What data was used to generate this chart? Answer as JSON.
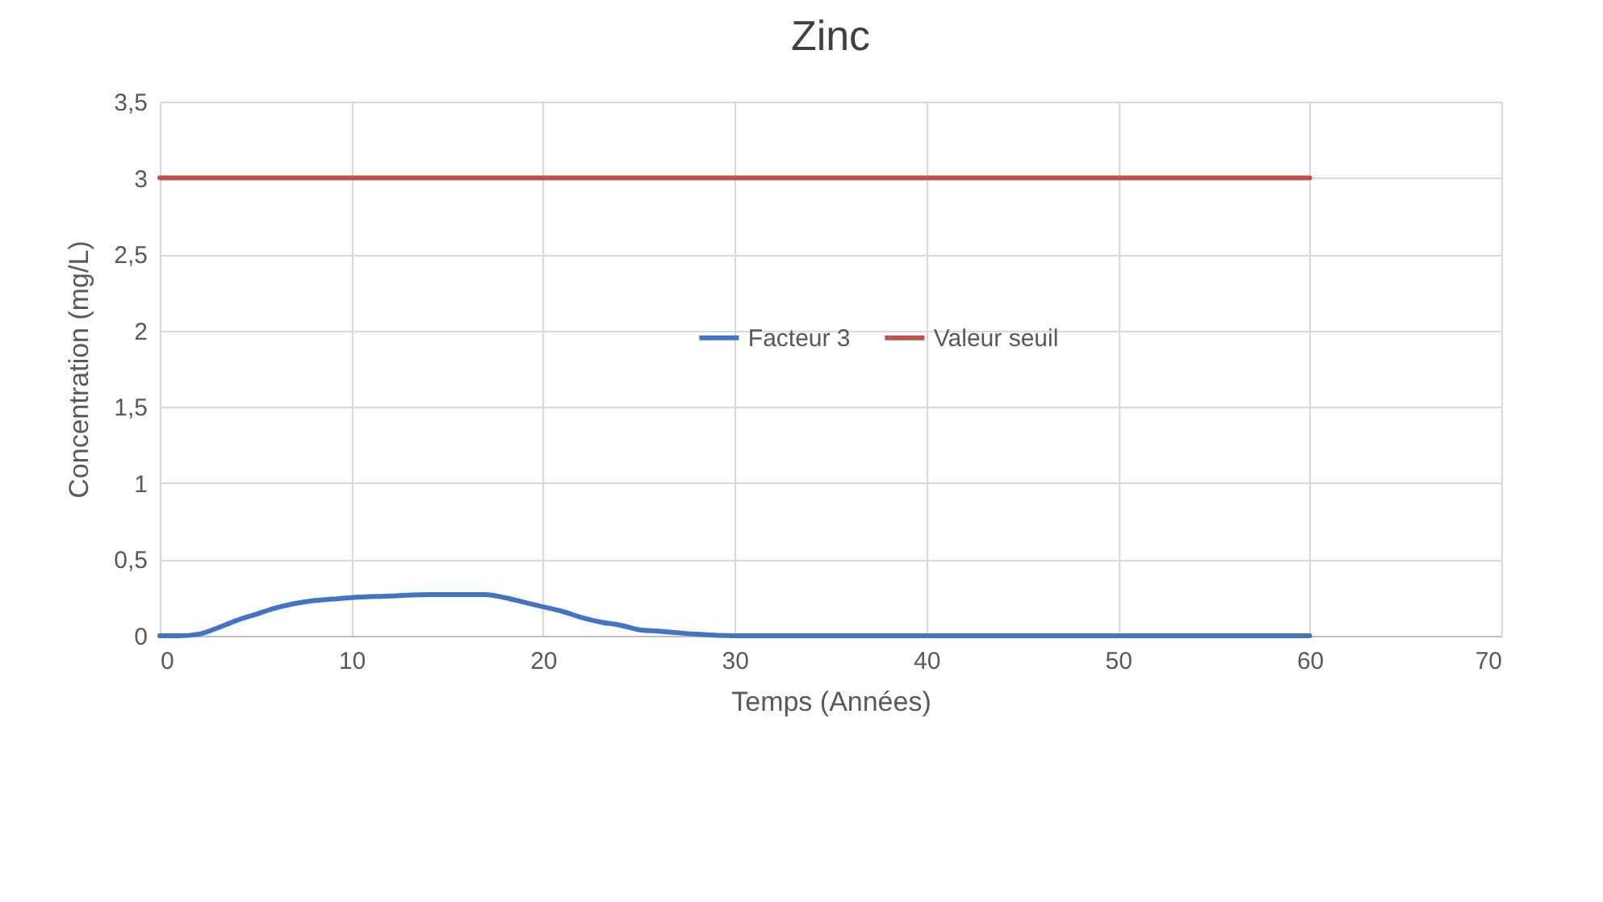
{
  "chart_data": {
    "type": "line",
    "title": "Zinc",
    "xlabel": "Temps (Années)",
    "ylabel": "Concentration (mg/L)",
    "x": [
      0,
      1,
      2,
      3,
      4,
      5,
      6,
      7,
      8,
      9,
      10,
      12,
      14,
      16,
      17,
      18,
      19,
      20,
      21,
      22,
      23,
      24,
      25,
      26,
      27,
      28,
      30,
      32,
      40,
      50,
      60
    ],
    "series": [
      {
        "name": "Facteur 3",
        "color": "#4472c4",
        "values": [
          0,
          0,
          0.01,
          0.05,
          0.1,
          0.14,
          0.18,
          0.21,
          0.23,
          0.24,
          0.25,
          0.26,
          0.27,
          0.27,
          0.27,
          0.25,
          0.22,
          0.19,
          0.16,
          0.12,
          0.09,
          0.07,
          0.04,
          0.03,
          0.02,
          0.01,
          0,
          0,
          0,
          0,
          0
        ]
      },
      {
        "name": "Valeur seuil",
        "color": "#c0504d",
        "x": [
          0,
          60
        ],
        "values": [
          3,
          3
        ]
      }
    ],
    "xlim": [
      0,
      70
    ],
    "xticks": [
      0,
      10,
      20,
      30,
      40,
      50,
      60,
      70
    ],
    "ylim": [
      0,
      3.5
    ],
    "yticks": [
      0,
      {
        "value": 0.5,
        "label": "0,5"
      },
      1,
      {
        "value": 1.5,
        "label": "1,5"
      },
      2,
      {
        "value": 2.5,
        "label": "2,5"
      },
      3,
      {
        "value": 3.5,
        "label": "3,5"
      }
    ],
    "grid": true,
    "legend": "right",
    "marker": "none",
    "line_style": "solid"
  }
}
